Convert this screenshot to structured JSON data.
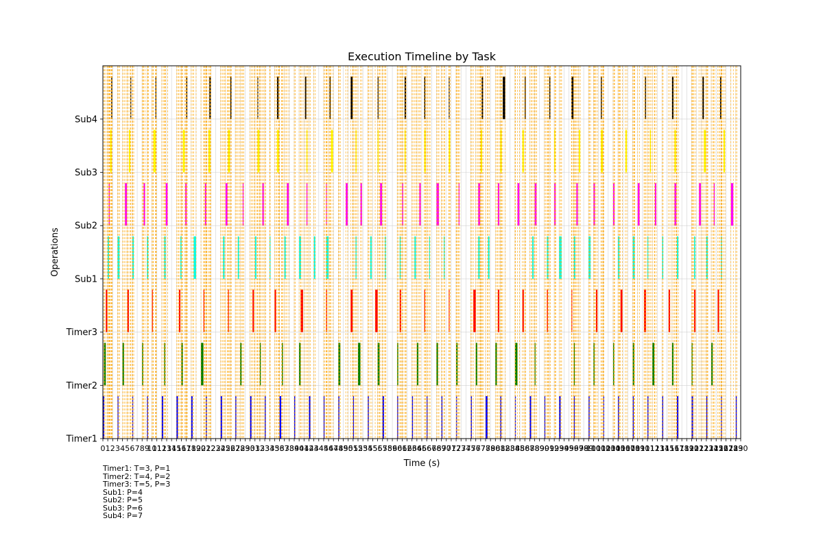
{
  "chart_data": {
    "type": "timeline",
    "title": "Execution Timeline by Task",
    "xlabel": "Time (s)",
    "ylabel": "Operations",
    "xlim": [
      0,
      130
    ],
    "x_ticks": [
      0,
      1,
      2,
      3,
      4,
      5,
      6,
      7,
      8,
      9,
      10,
      11,
      12,
      13,
      14,
      15,
      16,
      17,
      18,
      19,
      20,
      21,
      22,
      23,
      24,
      25,
      26,
      27,
      28,
      29,
      30,
      31,
      32,
      33,
      34,
      35,
      36,
      37,
      38,
      39,
      40,
      41,
      42,
      43,
      44,
      45,
      46,
      47,
      48,
      49,
      50,
      51,
      52,
      53,
      54,
      55,
      56,
      57,
      58,
      59,
      60,
      61,
      62,
      63,
      64,
      65,
      66,
      67,
      68,
      69,
      70,
      71,
      72,
      73,
      74,
      75,
      76,
      77,
      78,
      79,
      80,
      81,
      82,
      83,
      84,
      85,
      86,
      87,
      88,
      89,
      90,
      91,
      92,
      93,
      94,
      95,
      96,
      97,
      98,
      99,
      100,
      101,
      102,
      103,
      104,
      105,
      106,
      107,
      108,
      109,
      110,
      111,
      112,
      113,
      114,
      115,
      116,
      117,
      118,
      119,
      120,
      121,
      122,
      123,
      124,
      125,
      126,
      127,
      128,
      129,
      130
    ],
    "y_tick_labels": [
      "Timer1",
      "Timer2",
      "Timer3",
      "Sub1",
      "Sub2",
      "Sub3",
      "Sub4"
    ],
    "grid": true,
    "series": [
      {
        "name": "Timer1",
        "color": "#0000ff",
        "segments": [
          [
            0,
            0.3
          ],
          [
            3,
            0.15
          ],
          [
            6,
            0.1
          ],
          [
            9,
            0.15
          ],
          [
            12,
            0.3
          ],
          [
            15,
            0.3
          ],
          [
            18,
            0.3
          ],
          [
            21,
            0.2
          ],
          [
            24,
            0.3
          ],
          [
            27,
            0.2
          ],
          [
            30,
            0.3
          ],
          [
            33,
            0.2
          ],
          [
            36,
            0.35
          ],
          [
            39,
            0.2
          ],
          [
            42,
            0.3
          ],
          [
            45,
            0.15
          ],
          [
            48,
            0.2
          ],
          [
            51,
            0.15
          ],
          [
            54,
            0.2
          ],
          [
            57,
            0.3
          ],
          [
            60,
            0.15
          ],
          [
            63,
            0.2
          ],
          [
            66,
            0.15
          ],
          [
            69,
            0.2
          ],
          [
            72,
            0.1
          ],
          [
            75,
            0.2
          ],
          [
            78,
            0.4
          ],
          [
            81,
            0.2
          ],
          [
            84,
            0.1
          ],
          [
            87,
            0.3
          ],
          [
            90,
            0.15
          ],
          [
            93,
            0.3
          ],
          [
            96,
            0.15
          ],
          [
            99,
            0.2
          ],
          [
            102,
            0.1
          ],
          [
            105,
            0.2
          ],
          [
            108,
            0.2
          ],
          [
            111,
            0.2
          ],
          [
            114,
            0.2
          ],
          [
            117,
            0.3
          ],
          [
            120,
            0.3
          ],
          [
            123,
            0.2
          ],
          [
            126,
            0.15
          ],
          [
            129,
            0.2
          ]
        ]
      },
      {
        "name": "Timer2",
        "color": "#008000",
        "segments": [
          [
            0.2,
            0.4
          ],
          [
            4,
            0.3
          ],
          [
            8,
            0.2
          ],
          [
            12.5,
            0.2
          ],
          [
            16,
            0.3
          ],
          [
            20,
            0.5
          ],
          [
            28,
            0.25
          ],
          [
            32,
            0.2
          ],
          [
            36.5,
            0.2
          ],
          [
            40,
            0.3
          ],
          [
            48,
            0.4
          ],
          [
            52,
            0.5
          ],
          [
            56,
            0.4
          ],
          [
            60,
            0.2
          ],
          [
            64,
            0.3
          ],
          [
            68,
            0.3
          ],
          [
            72,
            0.3
          ],
          [
            76,
            0.3
          ],
          [
            80,
            0.3
          ],
          [
            84,
            0.5
          ],
          [
            88,
            0.15
          ],
          [
            96,
            0.15
          ],
          [
            100,
            0.2
          ],
          [
            104,
            0.2
          ],
          [
            108,
            0.3
          ],
          [
            112,
            0.4
          ],
          [
            116,
            0.3
          ],
          [
            120,
            0.15
          ],
          [
            124,
            0.3
          ]
        ]
      },
      {
        "name": "Timer3",
        "color": "#ff0000",
        "segments": [
          [
            0.6,
            0.3
          ],
          [
            5,
            0.3
          ],
          [
            10,
            0.15
          ],
          [
            15.5,
            0.3
          ],
          [
            20.5,
            0.15
          ],
          [
            25.5,
            0.15
          ],
          [
            30.5,
            0.3
          ],
          [
            35,
            0.3
          ],
          [
            40.3,
            0.5
          ],
          [
            45.5,
            0.2
          ],
          [
            50.5,
            0.4
          ],
          [
            55.5,
            0.5
          ],
          [
            60.5,
            0.3
          ],
          [
            65.5,
            0.15
          ],
          [
            70.5,
            0.1
          ],
          [
            75.5,
            0.5
          ],
          [
            80.5,
            0.3
          ],
          [
            85.5,
            0.3
          ],
          [
            90.5,
            0.2
          ],
          [
            95.5,
            0.1
          ],
          [
            100.5,
            0.3
          ],
          [
            105.5,
            0.4
          ],
          [
            110.3,
            0.4
          ],
          [
            115.3,
            0.3
          ],
          [
            120.5,
            0.3
          ],
          [
            125.3,
            0.3
          ]
        ]
      },
      {
        "name": "Sub1",
        "color": "#00ffee",
        "segments": [
          [
            1,
            0.25
          ],
          [
            3,
            0.4
          ],
          [
            6,
            0.3
          ],
          [
            9,
            0.25
          ],
          [
            12.5,
            0.3
          ],
          [
            15.8,
            0.25
          ],
          [
            18.5,
            0.5
          ],
          [
            24.5,
            0.3
          ],
          [
            27.5,
            0.25
          ],
          [
            31,
            0.3
          ],
          [
            34,
            0.1
          ],
          [
            37,
            0.25
          ],
          [
            40,
            0.4
          ],
          [
            43,
            0.3
          ],
          [
            45.5,
            0.5
          ],
          [
            51.5,
            0.2
          ],
          [
            54.5,
            0.3
          ],
          [
            57.5,
            0.15
          ],
          [
            60.5,
            0.2
          ],
          [
            63.5,
            0.3
          ],
          [
            66.5,
            0.15
          ],
          [
            69.5,
            0.15
          ],
          [
            76.5,
            0.3
          ],
          [
            78.5,
            0.3
          ],
          [
            87.5,
            0.3
          ],
          [
            90.5,
            0.3
          ],
          [
            93,
            0.5
          ],
          [
            96,
            0.3
          ],
          [
            99,
            0.4
          ],
          [
            105,
            0.3
          ],
          [
            108,
            0.4
          ],
          [
            111,
            0.15
          ],
          [
            114,
            0.2
          ],
          [
            117,
            0.3
          ],
          [
            120.5,
            0.25
          ],
          [
            123,
            0.3
          ],
          [
            126,
            0.15
          ]
        ]
      },
      {
        "name": "Sub2",
        "color": "#ff00ff",
        "segments": [
          [
            1.2,
            0.2
          ],
          [
            4.5,
            0.4
          ],
          [
            8.3,
            0.3
          ],
          [
            12.8,
            0.4
          ],
          [
            16.8,
            0.3
          ],
          [
            20.8,
            0.3
          ],
          [
            25,
            0.4
          ],
          [
            28.5,
            0.15
          ],
          [
            32.5,
            0.3
          ],
          [
            37.5,
            0.4
          ],
          [
            41.5,
            0.2
          ],
          [
            45.5,
            0.1
          ],
          [
            49.5,
            0.4
          ],
          [
            52.5,
            0.3
          ],
          [
            56.5,
            0.4
          ],
          [
            61,
            0.2
          ],
          [
            64.5,
            0.3
          ],
          [
            68,
            0.5
          ],
          [
            72.5,
            0.15
          ],
          [
            76.5,
            0.4
          ],
          [
            80.5,
            0.3
          ],
          [
            84.5,
            0.4
          ],
          [
            88,
            0.4
          ],
          [
            92,
            0.3
          ],
          [
            96.5,
            0.3
          ],
          [
            100,
            0.3
          ],
          [
            104,
            0.3
          ],
          [
            109,
            0.4
          ],
          [
            112.5,
            0.3
          ],
          [
            116.5,
            0.4
          ],
          [
            121.5,
            0.4
          ],
          [
            124.5,
            0.2
          ],
          [
            128,
            0.5
          ]
        ]
      },
      {
        "name": "Sub3",
        "color": "#ffff00",
        "segments": [
          [
            1.5,
            0.3
          ],
          [
            5.3,
            0.3
          ],
          [
            10.3,
            0.5
          ],
          [
            16.3,
            0.4
          ],
          [
            21.5,
            0.4
          ],
          [
            25.5,
            0.4
          ],
          [
            31.5,
            0.4
          ],
          [
            35.5,
            0.4
          ],
          [
            41.5,
            0.2
          ],
          [
            46.5,
            0.4
          ],
          [
            51.5,
            0.2
          ],
          [
            56,
            0.2
          ],
          [
            61.5,
            0.2
          ],
          [
            65.5,
            0.3
          ],
          [
            70.5,
            0.3
          ],
          [
            77,
            0.3
          ],
          [
            81,
            0.3
          ],
          [
            85.5,
            0.3
          ],
          [
            92,
            0.2
          ],
          [
            97,
            0.3
          ],
          [
            101.5,
            0.4
          ],
          [
            106.5,
            0.3
          ],
          [
            111.5,
            0.2
          ],
          [
            116.5,
            0.3
          ],
          [
            122.5,
            0.4
          ],
          [
            126.5,
            0.3
          ]
        ]
      },
      {
        "name": "Sub4",
        "color": "#000000",
        "segments": [
          [
            1.7,
            0.2
          ],
          [
            5.6,
            0.1
          ],
          [
            10.7,
            0.15
          ],
          [
            17,
            0.2
          ],
          [
            21.7,
            0.3
          ],
          [
            26,
            0.2
          ],
          [
            31.5,
            0.1
          ],
          [
            35.5,
            0.3
          ],
          [
            41.2,
            0.25
          ],
          [
            46.2,
            0.2
          ],
          [
            50.5,
            0.4
          ],
          [
            56,
            0.15
          ],
          [
            61.5,
            0.3
          ],
          [
            65.5,
            0.2
          ],
          [
            70.5,
            0.1
          ],
          [
            77.2,
            0.3
          ],
          [
            81.5,
            0.5
          ],
          [
            86,
            0.15
          ],
          [
            91,
            0.2
          ],
          [
            95.5,
            0.4
          ],
          [
            101.5,
            0.2
          ],
          [
            110.5,
            0.2
          ],
          [
            116,
            0.3
          ],
          [
            122.2,
            0.3
          ],
          [
            125.8,
            0.25
          ]
        ]
      }
    ],
    "annotations": [
      "Timer1: T=3, P=1",
      "Timer2: T=4, P=2",
      "Timer3: T=5, P=3",
      "Sub1: P=4",
      "Sub2: P=5",
      "Sub3: P=6",
      "Sub4: P=7"
    ]
  }
}
